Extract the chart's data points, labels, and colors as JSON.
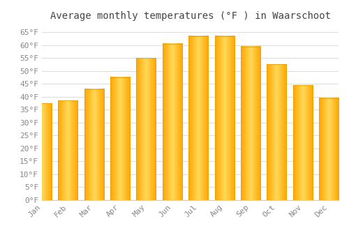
{
  "title": "Average monthly temperatures (°F ) in Waarschoot",
  "months": [
    "Jan",
    "Feb",
    "Mar",
    "Apr",
    "May",
    "Jun",
    "Jul",
    "Aug",
    "Sep",
    "Oct",
    "Nov",
    "Dec"
  ],
  "values": [
    37.5,
    38.5,
    43.0,
    47.5,
    55.0,
    60.5,
    63.5,
    63.5,
    59.5,
    52.5,
    44.5,
    39.5
  ],
  "bar_color_left": "#FFA500",
  "bar_color_center": "#FFD060",
  "bar_color_right": "#FFA500",
  "background_color": "#FFFFFF",
  "grid_color": "#DDDDDD",
  "ylim": [
    0,
    68
  ],
  "yticks": [
    0,
    5,
    10,
    15,
    20,
    25,
    30,
    35,
    40,
    45,
    50,
    55,
    60,
    65
  ],
  "ytick_labels": [
    "0°F",
    "5°F",
    "10°F",
    "15°F",
    "20°F",
    "25°F",
    "30°F",
    "35°F",
    "40°F",
    "45°F",
    "50°F",
    "55°F",
    "60°F",
    "65°F"
  ],
  "title_fontsize": 10,
  "tick_fontsize": 8,
  "font_family": "monospace",
  "bar_width": 0.75
}
